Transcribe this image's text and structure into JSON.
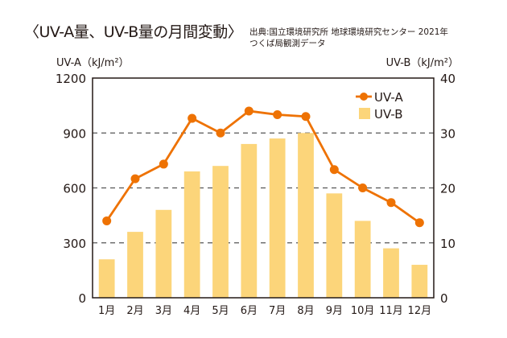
{
  "title": "〈UV-A量、UV-B量の月間変動〉",
  "source": {
    "line1": "出典:国立環境研究所 地球環境研究センター 2021年",
    "line2": "つくば局観測データ"
  },
  "colors": {
    "uva": "#EE7203",
    "uvb": "#FCD57A",
    "axis": "#231815",
    "grid": "#555555"
  },
  "chart_data": {
    "type": "bar+line",
    "title": "UV-A量、UV-B量の月間変動",
    "categories": [
      "1月",
      "2月",
      "3月",
      "4月",
      "5月",
      "6月",
      "7月",
      "8月",
      "9月",
      "10月",
      "11月",
      "12月"
    ],
    "series": [
      {
        "name": "UV-A",
        "type": "line",
        "axis": "left",
        "values": [
          420,
          650,
          730,
          980,
          900,
          1020,
          1000,
          990,
          700,
          600,
          520,
          410
        ]
      },
      {
        "name": "UV-B",
        "type": "bar",
        "axis": "right",
        "values": [
          7,
          12,
          16,
          23,
          24,
          28,
          29,
          30,
          19,
          14,
          9,
          6
        ]
      }
    ],
    "ylabel_left": "UV-A（kJ/m²）",
    "ylabel_right": "UV-B（kJ/m²）",
    "ylim_left": [
      0,
      1200
    ],
    "ylim_right": [
      0,
      40
    ],
    "yticks_left": [
      "0",
      "300",
      "600",
      "900",
      "1200"
    ],
    "yticks_right": [
      "0",
      "10",
      "20",
      "30",
      "40"
    ],
    "yticks_left_values": [
      0,
      300,
      600,
      900,
      1200
    ],
    "yticks_right_values": [
      0,
      10,
      20,
      30,
      40
    ],
    "grid": "horizontal dashed",
    "legend": {
      "position": "top-right",
      "entries": [
        "UV-A",
        "UV-B"
      ]
    }
  }
}
